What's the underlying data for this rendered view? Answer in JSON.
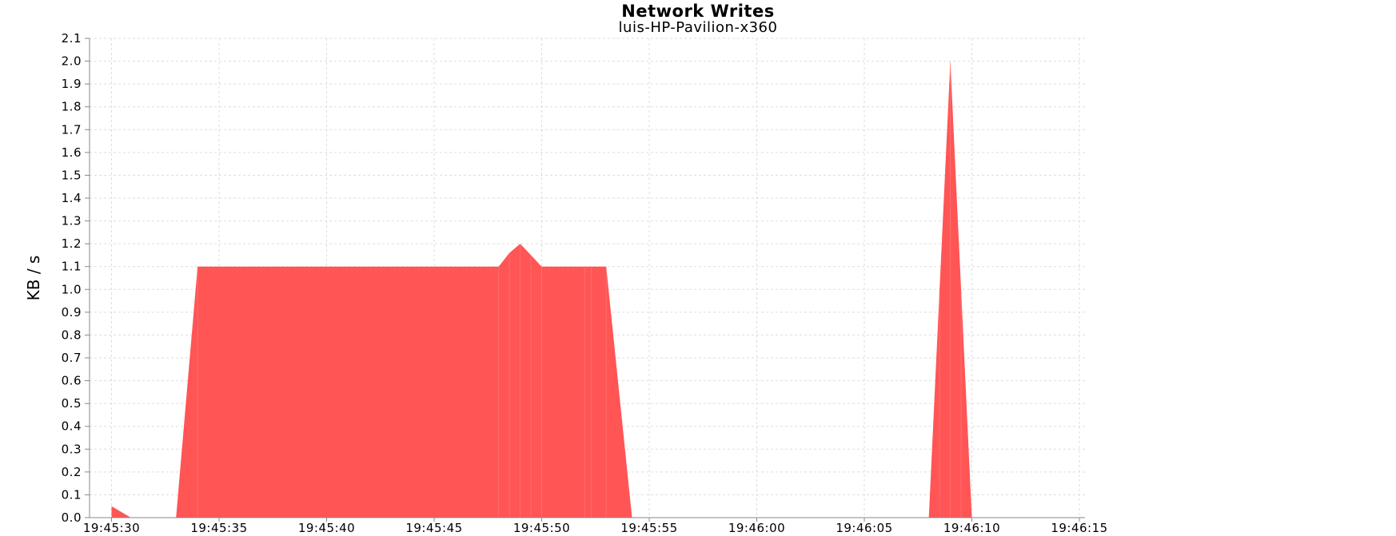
{
  "chart_data": {
    "type": "area",
    "title": "Network Writes",
    "subtitle": "luis-HP-Pavilion-x360",
    "xlabel": "",
    "ylabel": "KB / s",
    "ylim": [
      0.0,
      2.1
    ],
    "yticks": [
      "0.0",
      "0.1",
      "0.2",
      "0.3",
      "0.4",
      "0.5",
      "0.6",
      "0.7",
      "0.8",
      "0.9",
      "1.0",
      "1.1",
      "1.2",
      "1.3",
      "1.4",
      "1.5",
      "1.6",
      "1.7",
      "1.8",
      "1.9",
      "2.0",
      "2.1"
    ],
    "xticks": [
      "19:45:30",
      "19:45:35",
      "19:45:40",
      "19:45:45",
      "19:45:50",
      "19:45:55",
      "19:46:00",
      "19:46:05",
      "19:46:10",
      "19:46:15"
    ],
    "x_unit": "seconds after 19:45:30",
    "grid": true,
    "fill_color": "#ff5555",
    "series": [
      {
        "name": "",
        "x": [
          0,
          0.9,
          3.0,
          4.0,
          18.0,
          18.5,
          19.0,
          19.5,
          20.0,
          22.0,
          22.3,
          23.0,
          24.2,
          38.0,
          38.5,
          39.0,
          39.5,
          40.0,
          45.0
        ],
        "values": [
          0.05,
          0.0,
          0.0,
          1.1,
          1.1,
          1.16,
          1.2,
          1.15,
          1.1,
          1.1,
          1.1,
          1.1,
          0.0,
          0.0,
          1.0,
          2.0,
          1.0,
          0.0,
          0.0
        ]
      }
    ]
  }
}
